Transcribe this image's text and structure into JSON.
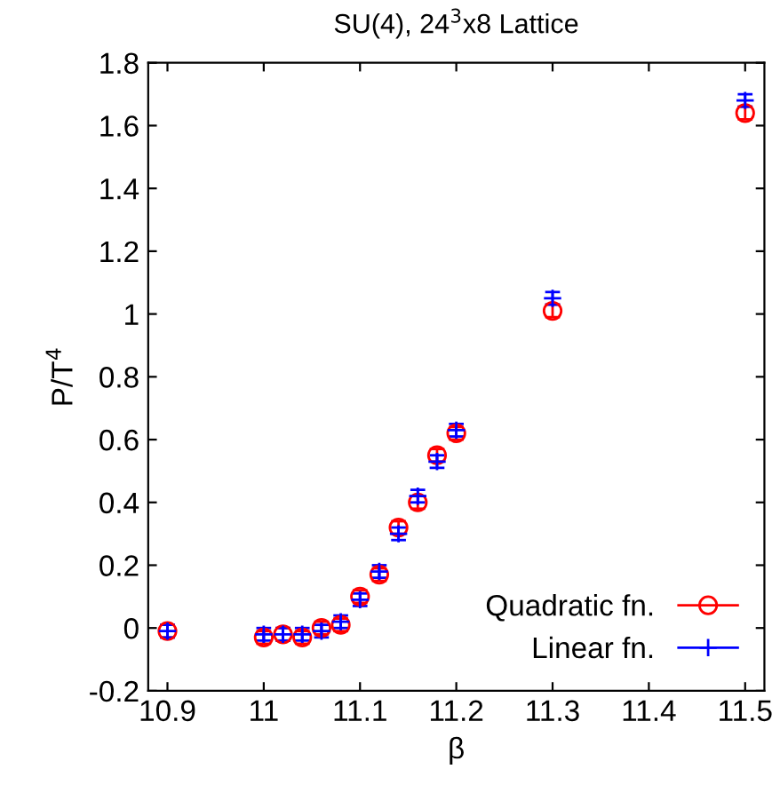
{
  "chart_data": {
    "type": "scatter",
    "title": "SU(4), 24$^{3}$x8 Lattice",
    "xlabel": "β",
    "ylabel": "P/T$^{4}$",
    "x": [
      10.9,
      11.0,
      11.02,
      11.04,
      11.06,
      11.08,
      11.1,
      11.12,
      11.14,
      11.16,
      11.18,
      11.2,
      11.3,
      11.5
    ],
    "series": [
      {
        "name": "Quadratic fn.",
        "color": "#ff0000",
        "marker": "circle",
        "values": [
          -0.01,
          -0.03,
          -0.02,
          -0.03,
          0.0,
          0.01,
          0.1,
          0.17,
          0.32,
          0.4,
          0.55,
          0.62,
          1.01,
          1.64
        ],
        "errors": [
          0.02,
          0.02,
          0.02,
          0.02,
          0.02,
          0.02,
          0.02,
          0.02,
          0.02,
          0.02,
          0.02,
          0.02,
          0.02,
          0.02
        ]
      },
      {
        "name": "Linear fn.",
        "color": "#0000ff",
        "marker": "cross",
        "values": [
          -0.01,
          -0.02,
          -0.02,
          -0.02,
          -0.01,
          0.02,
          0.09,
          0.18,
          0.3,
          0.42,
          0.53,
          0.63,
          1.05,
          1.68
        ],
        "errors": [
          0.02,
          0.02,
          0.02,
          0.02,
          0.02,
          0.02,
          0.02,
          0.02,
          0.02,
          0.02,
          0.02,
          0.02,
          0.02,
          0.02
        ]
      }
    ],
    "xlim": [
      10.88,
      11.52
    ],
    "xticks": [
      10.9,
      11,
      11.1,
      11.2,
      11.3,
      11.4,
      11.5
    ],
    "ylim": [
      -0.2,
      1.8
    ],
    "yticks": [
      -0.2,
      0,
      0.2,
      0.4,
      0.6,
      0.8,
      1,
      1.2,
      1.4,
      1.6,
      1.8
    ],
    "grid": false,
    "legend": "bottom right"
  }
}
